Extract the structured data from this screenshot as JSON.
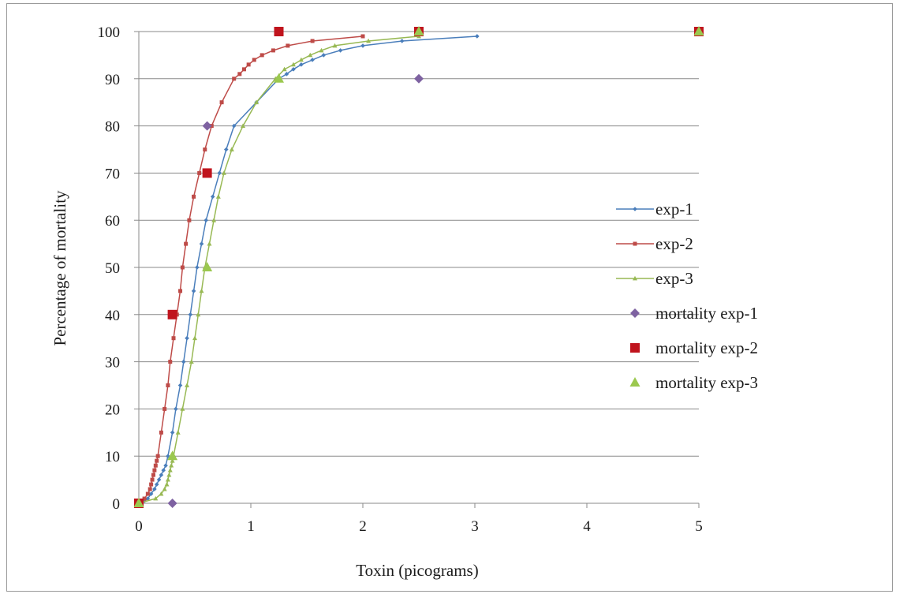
{
  "chart_data": {
    "type": "scatter",
    "xlabel": "Toxin  (picograms)",
    "ylabel": "Percentage of mortality",
    "xlim": [
      0,
      5
    ],
    "ylim": [
      0,
      100
    ],
    "x_ticks": [
      0,
      1,
      2,
      3,
      4,
      5
    ],
    "y_ticks": [
      0,
      10,
      20,
      30,
      40,
      50,
      60,
      70,
      80,
      90,
      100
    ],
    "grid": "horizontal",
    "legend_position": "right",
    "series": [
      {
        "name": "exp-1",
        "kind": "line",
        "marker": "diamond-small",
        "color": "#4a7ebb",
        "points": [
          [
            0,
            0
          ],
          [
            0.05,
            0.5
          ],
          [
            0.08,
            1
          ],
          [
            0.11,
            2
          ],
          [
            0.14,
            3
          ],
          [
            0.16,
            4
          ],
          [
            0.18,
            5
          ],
          [
            0.2,
            6
          ],
          [
            0.22,
            7
          ],
          [
            0.24,
            8
          ],
          [
            0.26,
            10
          ],
          [
            0.3,
            15
          ],
          [
            0.33,
            20
          ],
          [
            0.37,
            25
          ],
          [
            0.4,
            30
          ],
          [
            0.43,
            35
          ],
          [
            0.46,
            40
          ],
          [
            0.49,
            45
          ],
          [
            0.52,
            50
          ],
          [
            0.56,
            55
          ],
          [
            0.6,
            60
          ],
          [
            0.66,
            65
          ],
          [
            0.72,
            70
          ],
          [
            0.78,
            75
          ],
          [
            0.85,
            80
          ],
          [
            1.05,
            85
          ],
          [
            1.25,
            90
          ],
          [
            1.32,
            91
          ],
          [
            1.38,
            92
          ],
          [
            1.45,
            93
          ],
          [
            1.55,
            94
          ],
          [
            1.65,
            95
          ],
          [
            1.8,
            96
          ],
          [
            2.0,
            97
          ],
          [
            2.35,
            98
          ],
          [
            3.02,
            99
          ]
        ]
      },
      {
        "name": "exp-2",
        "kind": "line",
        "marker": "square-small",
        "color": "#be4b48",
        "points": [
          [
            0,
            0
          ],
          [
            0.05,
            1
          ],
          [
            0.08,
            2
          ],
          [
            0.1,
            3
          ],
          [
            0.11,
            4
          ],
          [
            0.12,
            5
          ],
          [
            0.13,
            6
          ],
          [
            0.14,
            7
          ],
          [
            0.15,
            8
          ],
          [
            0.16,
            9
          ],
          [
            0.17,
            10
          ],
          [
            0.2,
            15
          ],
          [
            0.23,
            20
          ],
          [
            0.26,
            25
          ],
          [
            0.28,
            30
          ],
          [
            0.31,
            35
          ],
          [
            0.34,
            40
          ],
          [
            0.37,
            45
          ],
          [
            0.39,
            50
          ],
          [
            0.42,
            55
          ],
          [
            0.45,
            60
          ],
          [
            0.49,
            65
          ],
          [
            0.54,
            70
          ],
          [
            0.59,
            75
          ],
          [
            0.65,
            80
          ],
          [
            0.74,
            85
          ],
          [
            0.85,
            90
          ],
          [
            0.9,
            91
          ],
          [
            0.94,
            92
          ],
          [
            0.98,
            93
          ],
          [
            1.03,
            94
          ],
          [
            1.1,
            95
          ],
          [
            1.2,
            96
          ],
          [
            1.33,
            97
          ],
          [
            1.55,
            98
          ],
          [
            2.0,
            99
          ]
        ]
      },
      {
        "name": "exp-3",
        "kind": "line",
        "marker": "triangle-small",
        "color": "#98b954",
        "points": [
          [
            0,
            0
          ],
          [
            0.15,
            1
          ],
          [
            0.2,
            2
          ],
          [
            0.23,
            3
          ],
          [
            0.25,
            4
          ],
          [
            0.26,
            5
          ],
          [
            0.27,
            6
          ],
          [
            0.28,
            7
          ],
          [
            0.29,
            8
          ],
          [
            0.3,
            9
          ],
          [
            0.31,
            10
          ],
          [
            0.35,
            15
          ],
          [
            0.39,
            20
          ],
          [
            0.43,
            25
          ],
          [
            0.47,
            30
          ],
          [
            0.5,
            35
          ],
          [
            0.53,
            40
          ],
          [
            0.56,
            45
          ],
          [
            0.59,
            50
          ],
          [
            0.63,
            55
          ],
          [
            0.67,
            60
          ],
          [
            0.71,
            65
          ],
          [
            0.76,
            70
          ],
          [
            0.83,
            75
          ],
          [
            0.93,
            80
          ],
          [
            1.05,
            85
          ],
          [
            1.22,
            90
          ],
          [
            1.3,
            92
          ],
          [
            1.38,
            93
          ],
          [
            1.45,
            94
          ],
          [
            1.53,
            95
          ],
          [
            1.63,
            96
          ],
          [
            1.75,
            97
          ],
          [
            2.05,
            98
          ],
          [
            2.5,
            99
          ]
        ]
      },
      {
        "name": "mortality exp-1",
        "kind": "markers",
        "marker": "diamond",
        "color": "#7e62a1",
        "points": [
          [
            0,
            0
          ],
          [
            0.3,
            0
          ],
          [
            0.61,
            80
          ],
          [
            2.5,
            90
          ],
          [
            5,
            100
          ]
        ]
      },
      {
        "name": "mortality exp-2",
        "kind": "markers",
        "marker": "square",
        "color": "#c0141d",
        "points": [
          [
            0,
            0
          ],
          [
            0.3,
            40
          ],
          [
            0.61,
            70
          ],
          [
            1.25,
            100
          ],
          [
            2.5,
            100
          ],
          [
            5,
            100
          ]
        ]
      },
      {
        "name": "mortality exp-3",
        "kind": "markers",
        "marker": "triangle",
        "color": "#9bc84f",
        "points": [
          [
            0,
            0
          ],
          [
            0.3,
            10
          ],
          [
            0.61,
            50
          ],
          [
            1.25,
            90
          ],
          [
            2.5,
            100
          ],
          [
            5,
            100
          ]
        ]
      }
    ]
  }
}
